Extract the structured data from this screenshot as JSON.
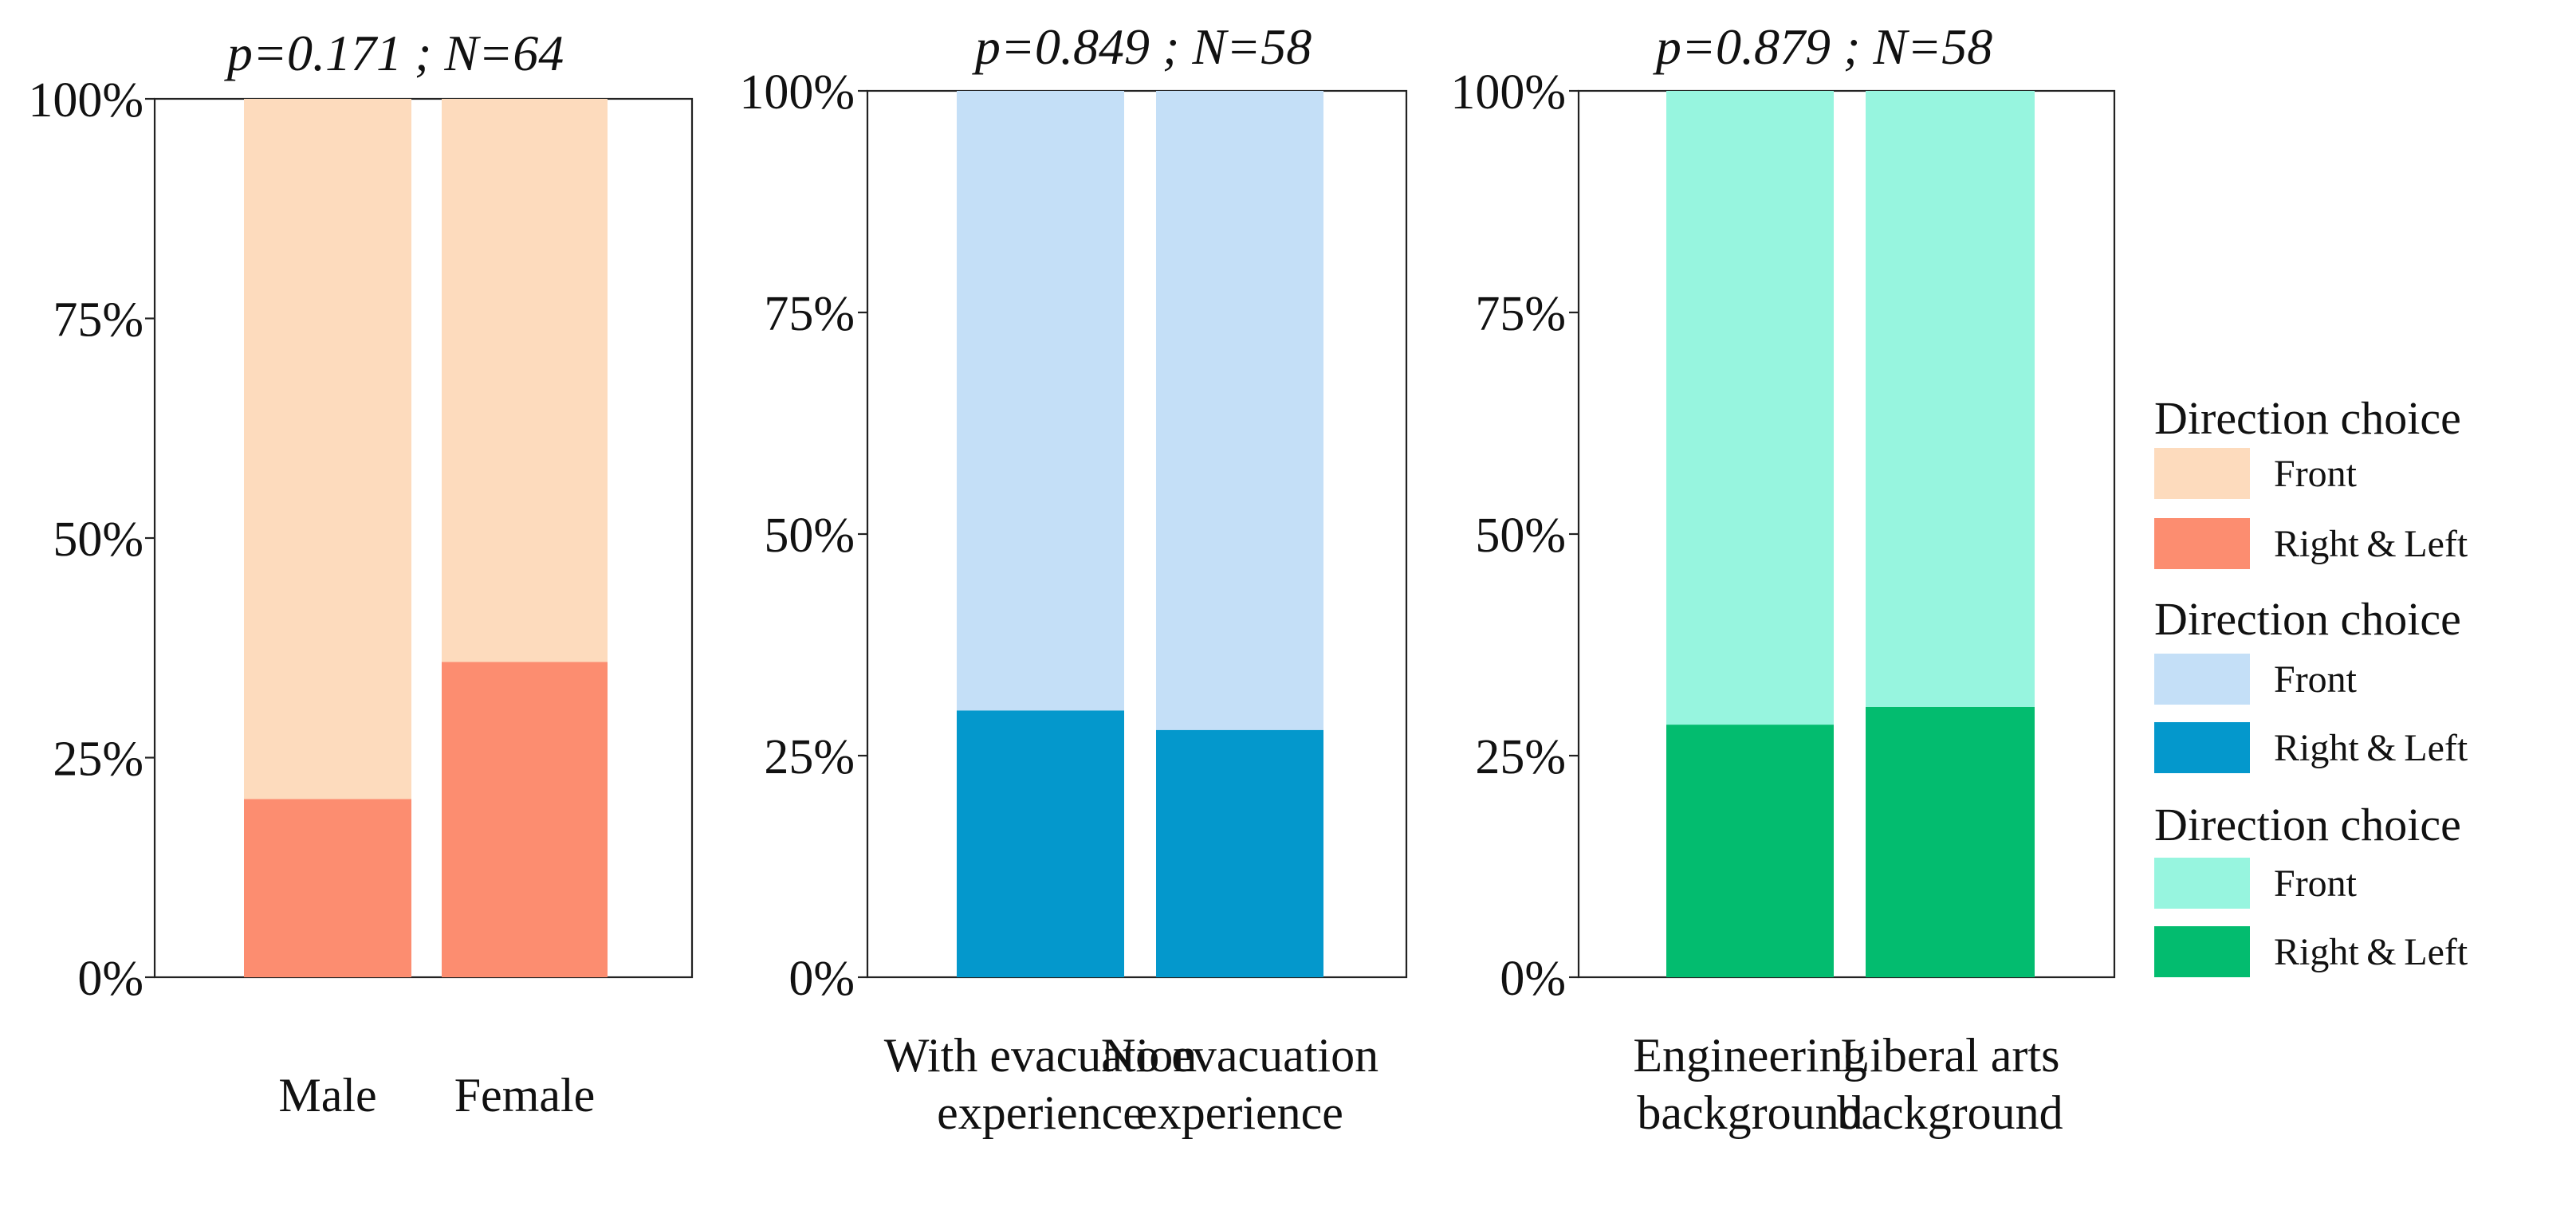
{
  "chart_data": [
    {
      "type": "bar",
      "stacked": true,
      "title": "p=0.171 ; N=64",
      "categories": [
        [
          "Male"
        ],
        [
          "Female"
        ]
      ],
      "series": [
        {
          "name": "Right & Left",
          "color": "#fc8d70",
          "values": [
            20.3,
            35.9
          ]
        },
        {
          "name": "Front",
          "color": "#fddbbd",
          "values": [
            79.7,
            64.1
          ]
        }
      ],
      "ylim": [
        0,
        100
      ],
      "yticks": [
        "0%",
        "25%",
        "50%",
        "75%",
        "100%"
      ],
      "xlabel": "",
      "ylabel": "",
      "legend": {
        "title": "Direction choice",
        "items": [
          {
            "label": "Front",
            "color": "#fddbbd"
          },
          {
            "label": "Right & Left",
            "color": "#fc8d70"
          }
        ]
      }
    },
    {
      "type": "bar",
      "stacked": true,
      "title": "p=0.849 ; N=58",
      "categories": [
        [
          "With evacuation",
          "experience"
        ],
        [
          "No evacuation",
          "experience"
        ]
      ],
      "series": [
        {
          "name": "Right & Left",
          "color": "#0498cc",
          "values": [
            30.1,
            27.9
          ]
        },
        {
          "name": "Front",
          "color": "#c4dff7",
          "values": [
            69.9,
            72.1
          ]
        }
      ],
      "ylim": [
        0,
        100
      ],
      "yticks": [
        "0%",
        "25%",
        "50%",
        "75%",
        "100%"
      ],
      "xlabel": "",
      "ylabel": "",
      "legend": {
        "title": "Direction choice",
        "items": [
          {
            "label": "Front",
            "color": "#c4dff7"
          },
          {
            "label": "Right & Left",
            "color": "#0498cc"
          }
        ]
      }
    },
    {
      "type": "bar",
      "stacked": true,
      "title": "p=0.879 ; N=58",
      "categories": [
        [
          "Engineering",
          "background"
        ],
        [
          "Liberal arts",
          "background"
        ]
      ],
      "series": [
        {
          "name": "Right & Left",
          "color": "#03bc6f",
          "values": [
            28.5,
            30.5
          ]
        },
        {
          "name": "Front",
          "color": "#97f5df",
          "values": [
            71.5,
            69.5
          ]
        }
      ],
      "ylim": [
        0,
        100
      ],
      "yticks": [
        "0%",
        "25%",
        "50%",
        "75%",
        "100%"
      ],
      "xlabel": "",
      "ylabel": "",
      "legend": {
        "title": "Direction choice",
        "items": [
          {
            "label": "Front",
            "color": "#97f5df"
          },
          {
            "label": "Right & Left",
            "color": "#03bc6f"
          }
        ]
      }
    }
  ]
}
